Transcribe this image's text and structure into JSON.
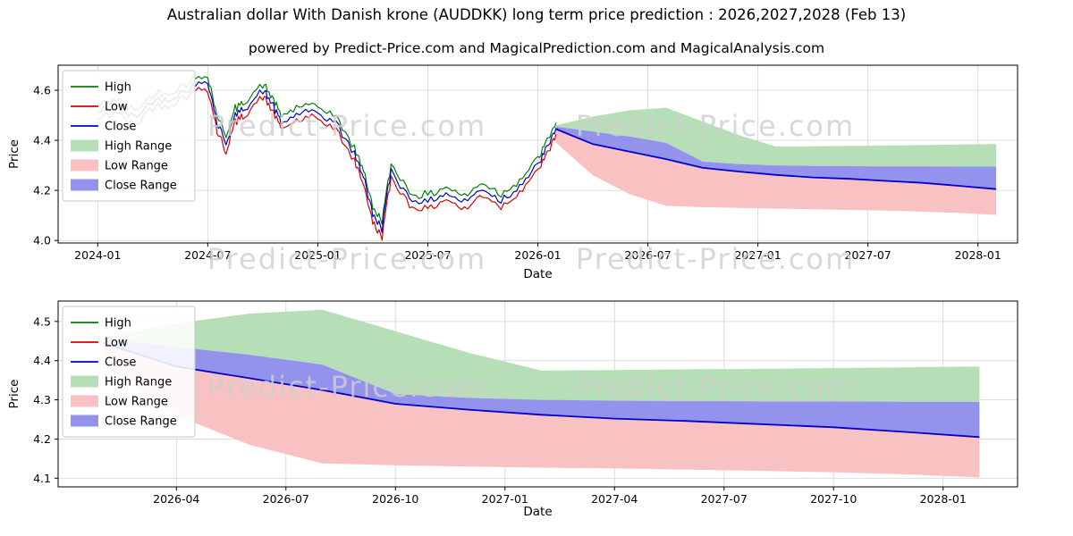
{
  "title": "Australian dollar With Danish krone (AUDDKK) long term price prediction : 2026,2027,2028 (Feb 13)",
  "subtitle": "powered by Predict-Price.com and MagicalPrediction.com and MagicalAnalysis.com",
  "watermark": {
    "text": "Predict-Price.com",
    "color": "#cfcfcf"
  },
  "colors": {
    "high_line": "#008000",
    "low_line": "#dd0000",
    "close_line": "#0000cc",
    "high_range": "#b7dfb7",
    "low_range": "#f9c2c2",
    "close_range": "#9393ee",
    "grid": "#d9d9d9",
    "axis": "#000000"
  },
  "chart_data": [
    {
      "name": "main-price-chart",
      "type": "line",
      "title": "",
      "xlabel": "Date",
      "ylabel": "Price",
      "xlim": [
        2023.82,
        2028.18
      ],
      "ylim": [
        3.99,
        4.7
      ],
      "yticks": [
        4.0,
        4.2,
        4.4,
        4.6
      ],
      "xticks": [
        {
          "v": 2024.0,
          "label": "2024-01"
        },
        {
          "v": 2024.5,
          "label": "2024-07"
        },
        {
          "v": 2025.0,
          "label": "2025-01"
        },
        {
          "v": 2025.5,
          "label": "2025-07"
        },
        {
          "v": 2026.0,
          "label": "2026-01"
        },
        {
          "v": 2026.5,
          "label": "2026-07"
        },
        {
          "v": 2027.0,
          "label": "2027-01"
        },
        {
          "v": 2027.5,
          "label": "2027-07"
        },
        {
          "v": 2028.0,
          "label": "2028-01"
        }
      ],
      "legend": [
        {
          "label": "High",
          "swatch": "line",
          "color": "#008000"
        },
        {
          "label": "Low",
          "swatch": "line",
          "color": "#dd0000"
        },
        {
          "label": "Close",
          "swatch": "line",
          "color": "#0000cc"
        },
        {
          "label": "High Range",
          "swatch": "patch",
          "color": "#b7dfb7"
        },
        {
          "label": "Low Range",
          "swatch": "patch",
          "color": "#f9c2c2"
        },
        {
          "label": "Close Range",
          "swatch": "patch",
          "color": "#9393ee"
        }
      ],
      "noise": 0.016,
      "history": {
        "x": [
          2024.0,
          2024.083,
          2024.167,
          2024.25,
          2024.333,
          2024.417,
          2024.5,
          2024.542,
          2024.583,
          2024.625,
          2024.667,
          2024.75,
          2024.792,
          2024.833,
          2024.917,
          2025.0,
          2025.083,
          2025.167,
          2025.208,
          2025.25,
          2025.292,
          2025.333,
          2025.417,
          2025.5,
          2025.583,
          2025.667,
          2025.75,
          2025.833,
          2025.917,
          2026.0,
          2026.042,
          2026.083
        ],
        "high": [
          4.535,
          4.565,
          4.515,
          4.585,
          4.595,
          4.635,
          4.665,
          4.5,
          4.42,
          4.525,
          4.555,
          4.625,
          4.575,
          4.495,
          4.535,
          4.535,
          4.495,
          4.365,
          4.285,
          4.13,
          4.08,
          4.305,
          4.195,
          4.175,
          4.215,
          4.175,
          4.235,
          4.185,
          4.245,
          4.325,
          4.395,
          4.47
        ],
        "low": [
          4.485,
          4.515,
          4.46,
          4.535,
          4.545,
          4.585,
          4.61,
          4.44,
          4.355,
          4.475,
          4.505,
          4.575,
          4.525,
          4.445,
          4.485,
          4.485,
          4.445,
          4.31,
          4.23,
          4.07,
          4.02,
          4.25,
          4.14,
          4.125,
          4.165,
          4.125,
          4.185,
          4.135,
          4.195,
          4.275,
          4.345,
          4.425
        ],
        "close": [
          4.51,
          4.54,
          4.49,
          4.56,
          4.57,
          4.61,
          4.64,
          4.47,
          4.39,
          4.5,
          4.53,
          4.6,
          4.55,
          4.47,
          4.51,
          4.51,
          4.47,
          4.34,
          4.26,
          4.1,
          4.05,
          4.28,
          4.17,
          4.15,
          4.19,
          4.15,
          4.21,
          4.16,
          4.22,
          4.3,
          4.37,
          4.45
        ]
      },
      "forecast": {
        "x": [
          2026.083,
          2026.25,
          2026.417,
          2026.583,
          2026.75,
          2026.917,
          2027.083,
          2027.25,
          2027.417,
          2027.583,
          2027.75,
          2027.917,
          2028.083
        ],
        "high_top": [
          4.46,
          4.495,
          4.52,
          4.53,
          4.475,
          4.42,
          4.375,
          4.376,
          4.378,
          4.379,
          4.381,
          4.383,
          4.385
        ],
        "close_top": [
          4.455,
          4.435,
          4.415,
          4.39,
          4.315,
          4.305,
          4.3,
          4.298,
          4.297,
          4.296,
          4.296,
          4.295,
          4.295
        ],
        "close": [
          4.445,
          4.385,
          4.355,
          4.325,
          4.29,
          4.275,
          4.262,
          4.252,
          4.246,
          4.238,
          4.23,
          4.218,
          4.205
        ],
        "low_bottom": [
          4.39,
          4.26,
          4.185,
          4.138,
          4.133,
          4.13,
          4.127,
          4.125,
          4.122,
          4.119,
          4.115,
          4.11,
          4.102
        ]
      }
    },
    {
      "name": "prediction-zoom-chart",
      "type": "line",
      "title": "",
      "xlabel": "Date",
      "ylabel": "Price",
      "xlim": [
        2025.98,
        2028.17
      ],
      "ylim": [
        4.078,
        4.552
      ],
      "yticks": [
        4.1,
        4.2,
        4.3,
        4.4,
        4.5
      ],
      "xticks": [
        {
          "v": 2026.25,
          "label": "2026-04"
        },
        {
          "v": 2026.5,
          "label": "2026-07"
        },
        {
          "v": 2026.75,
          "label": "2026-10"
        },
        {
          "v": 2027.0,
          "label": "2027-01"
        },
        {
          "v": 2027.25,
          "label": "2027-04"
        },
        {
          "v": 2027.5,
          "label": "2027-07"
        },
        {
          "v": 2027.75,
          "label": "2027-10"
        },
        {
          "v": 2028.0,
          "label": "2028-01"
        }
      ],
      "legend": [
        {
          "label": "High",
          "swatch": "line",
          "color": "#008000"
        },
        {
          "label": "Low",
          "swatch": "line",
          "color": "#dd0000"
        },
        {
          "label": "Close",
          "swatch": "line",
          "color": "#0000cc"
        },
        {
          "label": "High Range",
          "swatch": "patch",
          "color": "#b7dfb7"
        },
        {
          "label": "Low Range",
          "swatch": "patch",
          "color": "#f9c2c2"
        },
        {
          "label": "Close Range",
          "swatch": "patch",
          "color": "#9393ee"
        }
      ],
      "forecast": {
        "x": [
          2026.083,
          2026.25,
          2026.417,
          2026.583,
          2026.75,
          2026.917,
          2027.083,
          2027.25,
          2027.417,
          2027.583,
          2027.75,
          2027.917,
          2028.083
        ],
        "high_top": [
          4.46,
          4.495,
          4.52,
          4.53,
          4.475,
          4.42,
          4.375,
          4.376,
          4.378,
          4.379,
          4.381,
          4.383,
          4.385
        ],
        "close_top": [
          4.455,
          4.435,
          4.415,
          4.39,
          4.315,
          4.305,
          4.3,
          4.298,
          4.297,
          4.296,
          4.296,
          4.295,
          4.295
        ],
        "close": [
          4.445,
          4.385,
          4.355,
          4.325,
          4.29,
          4.275,
          4.262,
          4.252,
          4.246,
          4.238,
          4.23,
          4.218,
          4.205
        ],
        "low_bottom": [
          4.39,
          4.26,
          4.185,
          4.138,
          4.133,
          4.13,
          4.127,
          4.125,
          4.122,
          4.119,
          4.115,
          4.11,
          4.102
        ]
      }
    }
  ]
}
